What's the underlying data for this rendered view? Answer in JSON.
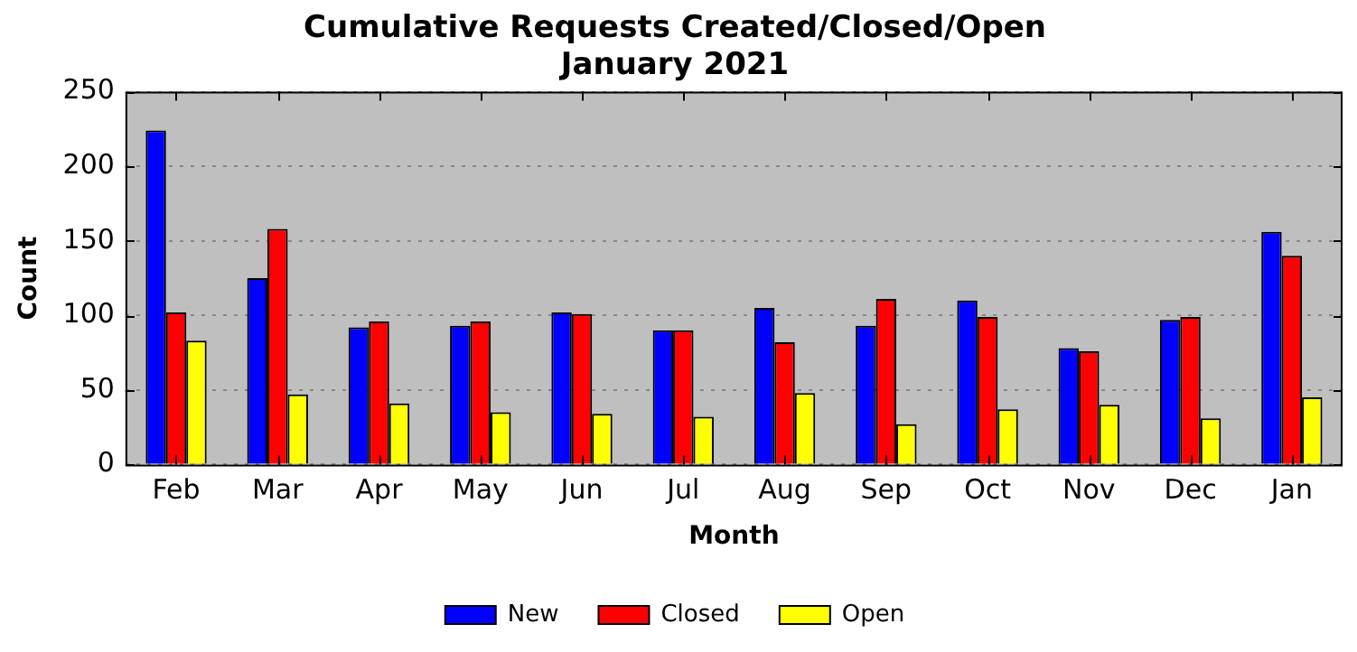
{
  "chart_data": {
    "type": "bar",
    "title": "Cumulative Requests Created/Closed/Open",
    "subtitle": "January 2021",
    "xlabel": "Month",
    "ylabel": "Count",
    "categories": [
      "Feb",
      "Mar",
      "Apr",
      "May",
      "Jun",
      "Jul",
      "Aug",
      "Sep",
      "Oct",
      "Nov",
      "Dec",
      "Jan"
    ],
    "series": [
      {
        "name": "New",
        "color": "#0000ff",
        "values": [
          224,
          125,
          92,
          93,
          102,
          90,
          105,
          93,
          110,
          78,
          97,
          156
        ]
      },
      {
        "name": "Closed",
        "color": "#ff0000",
        "values": [
          102,
          158,
          96,
          96,
          101,
          90,
          82,
          111,
          99,
          76,
          99,
          140
        ]
      },
      {
        "name": "Open",
        "color": "#ffff00",
        "values": [
          83,
          47,
          41,
          35,
          34,
          32,
          48,
          27,
          37,
          40,
          31,
          45
        ]
      }
    ],
    "ylim": [
      0,
      250
    ],
    "yticks": [
      0,
      50,
      100,
      150,
      200,
      250
    ],
    "grid": "y",
    "legend": "bottom"
  }
}
